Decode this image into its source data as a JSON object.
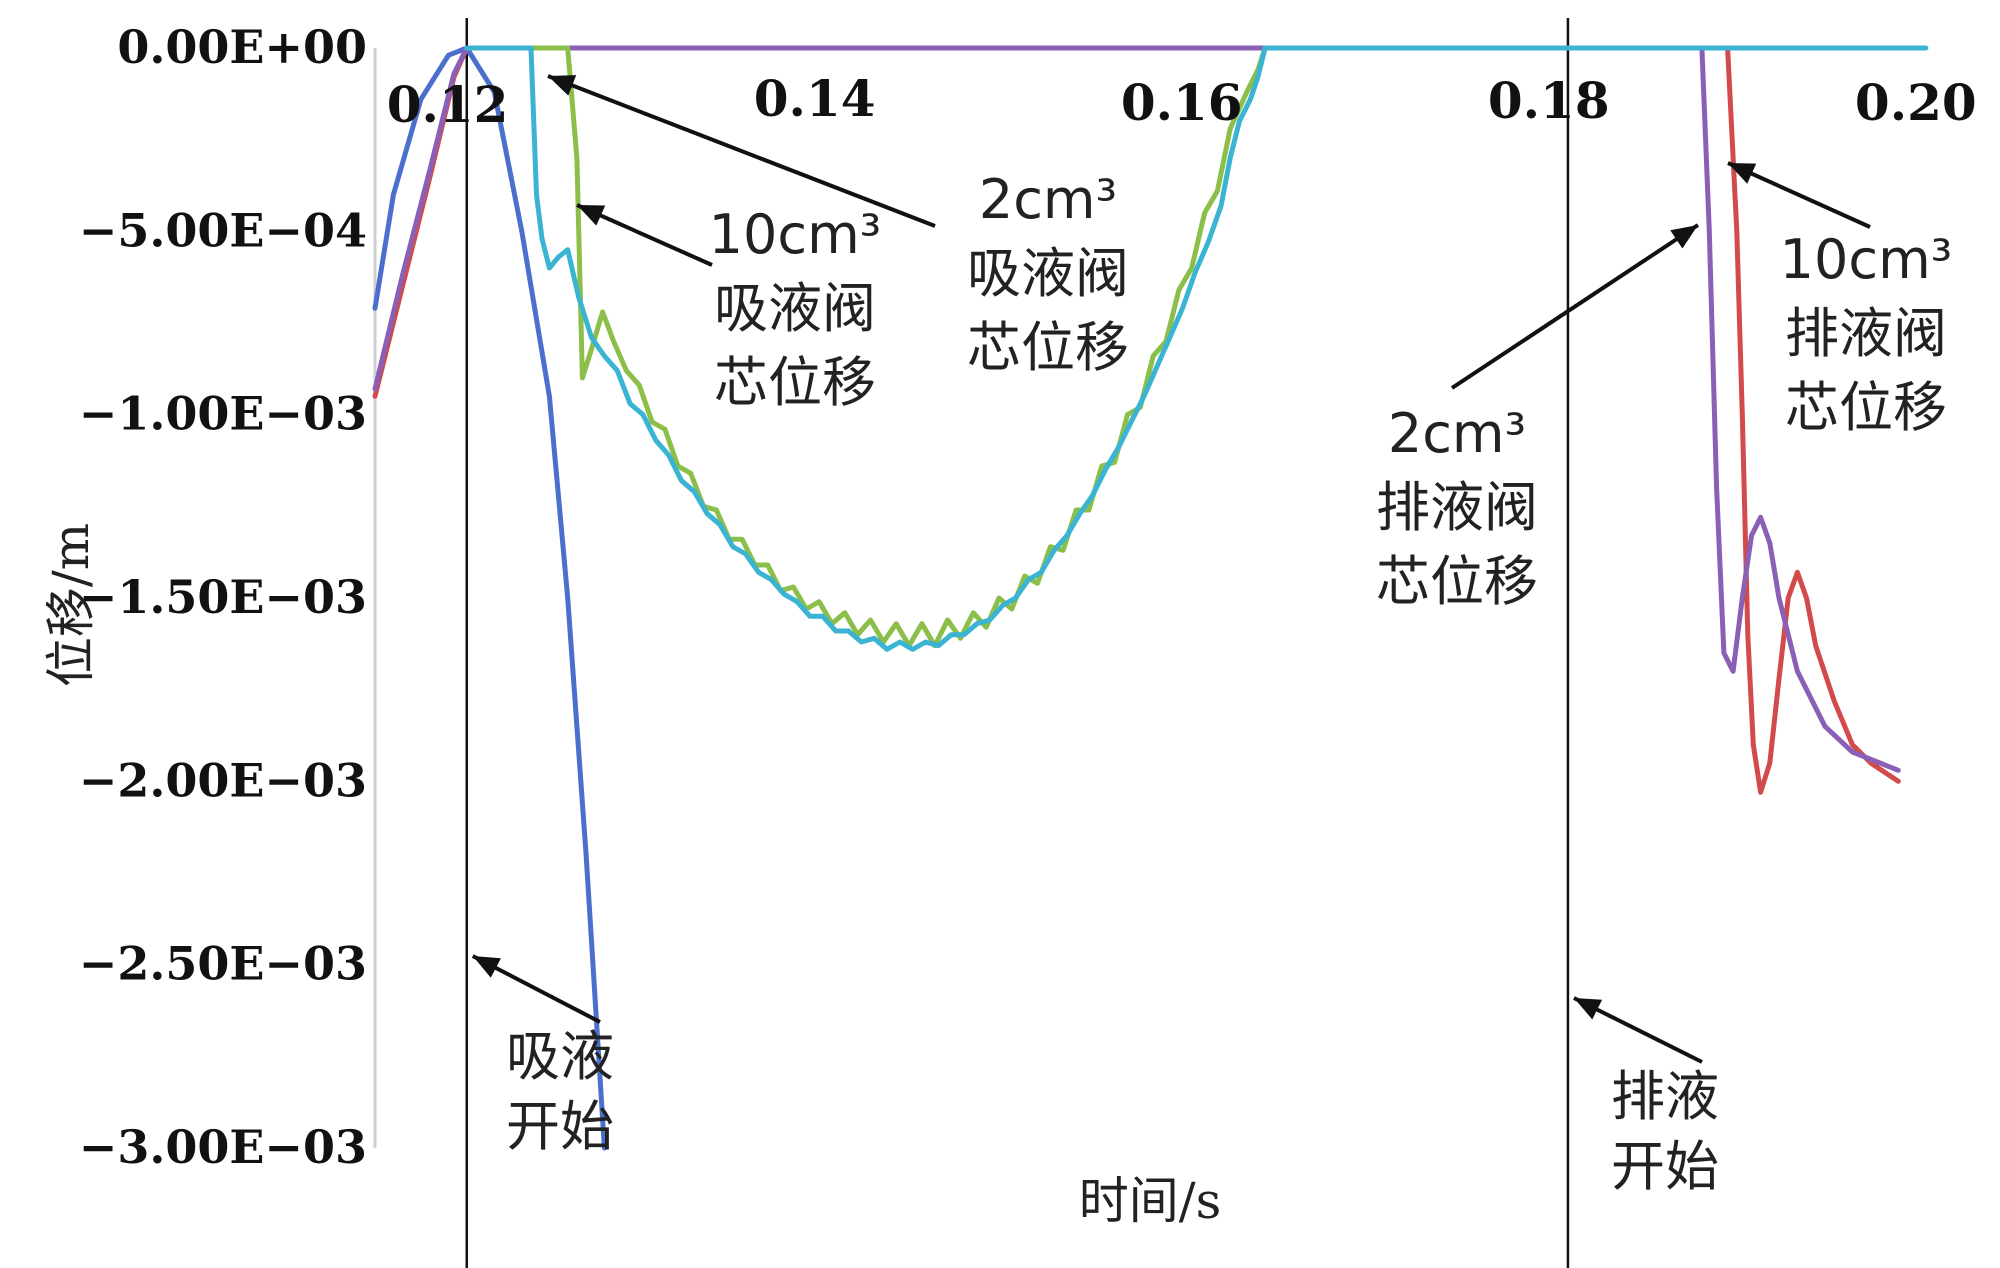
{
  "chart_data": {
    "type": "line",
    "xlabel": "时间/s",
    "ylabel": "位移/m",
    "xlim": [
      0.1155,
      0.2005
    ],
    "ylim": [
      -0.003,
      0
    ],
    "x_ticks": [
      "0.12",
      "0.14",
      "0.16",
      "0.18",
      "0.20"
    ],
    "y_ticks": [
      "0.00E+00",
      "−5.00E−04",
      "−1.00E−03",
      "−1.50E−03",
      "−2.00E−03",
      "−2.50E−03",
      "−3.00E−03"
    ],
    "grid": false,
    "legend": "none",
    "colors": {
      "blue": "#4a6fcc",
      "red": "#d24a4a",
      "green": "#8cbf4a",
      "cyan": "#3ab4d2",
      "purple": "#8a5fb6"
    },
    "events": [
      {
        "x": 0.1205,
        "label_lines": [
          "吸液",
          "开始"
        ]
      },
      {
        "x": 0.1805,
        "label_lines": [
          "排液",
          "开始"
        ]
      }
    ],
    "annotations": [
      {
        "target": "cyan",
        "lines": [
          "2cm³",
          "吸液阀",
          "芯位移"
        ]
      },
      {
        "target": "green",
        "lines": [
          "10cm³",
          "吸液阀",
          "芯位移"
        ]
      },
      {
        "target": "purple",
        "lines": [
          "2cm³",
          "排液阀",
          "芯位移"
        ]
      },
      {
        "target": "red",
        "lines": [
          "10cm³",
          "排液阀",
          "芯位移"
        ]
      }
    ],
    "series": [
      {
        "color_key": "blue",
        "points": [
          [
            0.1155,
            -0.00071
          ],
          [
            0.1165,
            -0.0004
          ],
          [
            0.118,
            -0.00014
          ],
          [
            0.1195,
            -2e-05
          ],
          [
            0.1205,
            0.0
          ],
          [
            0.122,
            -0.00012
          ],
          [
            0.1235,
            -0.0005
          ],
          [
            0.125,
            -0.00095
          ],
          [
            0.126,
            -0.0015
          ],
          [
            0.127,
            -0.0022
          ],
          [
            0.128,
            -0.003
          ]
        ]
      },
      {
        "color_key": "red",
        "points": [
          [
            0.1155,
            -0.00095
          ],
          [
            0.117,
            -0.00065
          ],
          [
            0.1185,
            -0.00035
          ],
          [
            0.1198,
            -8e-05
          ],
          [
            0.1205,
            0.0
          ],
          [
            0.13,
            0.0
          ],
          [
            0.15,
            0.0
          ],
          [
            0.17,
            0.0
          ],
          [
            0.188,
            0.0
          ],
          [
            0.1892,
            0.0
          ],
          [
            0.1897,
            -0.0005
          ],
          [
            0.19,
            -0.001
          ],
          [
            0.1903,
            -0.0016
          ],
          [
            0.1906,
            -0.0019
          ],
          [
            0.191,
            -0.00203
          ],
          [
            0.1915,
            -0.00195
          ],
          [
            0.192,
            -0.00172
          ],
          [
            0.1925,
            -0.0015
          ],
          [
            0.193,
            -0.00143
          ],
          [
            0.1935,
            -0.0015
          ],
          [
            0.194,
            -0.00163
          ],
          [
            0.195,
            -0.00178
          ],
          [
            0.196,
            -0.0019
          ],
          [
            0.197,
            -0.00195
          ],
          [
            0.1985,
            -0.002
          ]
        ]
      },
      {
        "color_key": "purple",
        "points": [
          [
            0.1155,
            -0.00093
          ],
          [
            0.117,
            -0.00062
          ],
          [
            0.1185,
            -0.00033
          ],
          [
            0.1198,
            -7e-05
          ],
          [
            0.1205,
            0.0
          ],
          [
            0.13,
            0.0
          ],
          [
            0.15,
            0.0
          ],
          [
            0.17,
            0.0
          ],
          [
            0.187,
            0.0
          ],
          [
            0.1878,
            0.0
          ],
          [
            0.1882,
            -0.0005
          ],
          [
            0.1886,
            -0.0012
          ],
          [
            0.189,
            -0.00165
          ],
          [
            0.1895,
            -0.0017
          ],
          [
            0.19,
            -0.0015
          ],
          [
            0.1905,
            -0.00133
          ],
          [
            0.191,
            -0.00128
          ],
          [
            0.1915,
            -0.00135
          ],
          [
            0.192,
            -0.0015
          ],
          [
            0.193,
            -0.0017
          ],
          [
            0.1945,
            -0.00185
          ],
          [
            0.196,
            -0.00192
          ],
          [
            0.1985,
            -0.00197
          ]
        ]
      },
      {
        "color_key": "green",
        "points": [
          [
            0.1205,
            0.0
          ],
          [
            0.126,
            0.0
          ],
          [
            0.1265,
            -0.0003
          ],
          [
            0.1268,
            -0.0009
          ],
          [
            0.1273,
            -0.00082
          ],
          [
            0.1279,
            -0.00072
          ],
          [
            0.1285,
            -0.0008
          ],
          [
            0.1292,
            -0.00088
          ],
          [
            0.1299,
            -0.00092
          ],
          [
            0.1306,
            -0.00102
          ],
          [
            0.1313,
            -0.00104
          ],
          [
            0.132,
            -0.00114
          ],
          [
            0.1327,
            -0.00116
          ],
          [
            0.1334,
            -0.00125
          ],
          [
            0.1341,
            -0.00126
          ],
          [
            0.1348,
            -0.00134
          ],
          [
            0.1355,
            -0.00134
          ],
          [
            0.1362,
            -0.00141
          ],
          [
            0.1369,
            -0.00141
          ],
          [
            0.1376,
            -0.00148
          ],
          [
            0.1383,
            -0.00147
          ],
          [
            0.139,
            -0.00153
          ],
          [
            0.1397,
            -0.00151
          ],
          [
            0.1404,
            -0.00157
          ],
          [
            0.1411,
            -0.00154
          ],
          [
            0.1418,
            -0.0016
          ],
          [
            0.1425,
            -0.00156
          ],
          [
            0.1432,
            -0.00162
          ],
          [
            0.1439,
            -0.00157
          ],
          [
            0.1446,
            -0.00163
          ],
          [
            0.1453,
            -0.00157
          ],
          [
            0.146,
            -0.00163
          ],
          [
            0.1467,
            -0.00156
          ],
          [
            0.1474,
            -0.00161
          ],
          [
            0.1481,
            -0.00154
          ],
          [
            0.1488,
            -0.00158
          ],
          [
            0.1495,
            -0.0015
          ],
          [
            0.1502,
            -0.00153
          ],
          [
            0.1509,
            -0.00144
          ],
          [
            0.1516,
            -0.00146
          ],
          [
            0.1523,
            -0.00136
          ],
          [
            0.153,
            -0.00137
          ],
          [
            0.1537,
            -0.00126
          ],
          [
            0.1544,
            -0.00126
          ],
          [
            0.1551,
            -0.00114
          ],
          [
            0.1558,
            -0.00113
          ],
          [
            0.1565,
            -0.001
          ],
          [
            0.1572,
            -0.00098
          ],
          [
            0.1579,
            -0.00084
          ],
          [
            0.1586,
            -0.0008
          ],
          [
            0.1593,
            -0.00066
          ],
          [
            0.16,
            -0.0006
          ],
          [
            0.1607,
            -0.00045
          ],
          [
            0.1614,
            -0.00039
          ],
          [
            0.1621,
            -0.00022
          ],
          [
            0.163,
            -0.00012
          ],
          [
            0.1636,
            -6e-05
          ],
          [
            0.164,
            0.0
          ],
          [
            0.17,
            0.0
          ],
          [
            0.19,
            0.0
          ],
          [
            0.2,
            0.0
          ]
        ]
      },
      {
        "color_key": "cyan",
        "points": [
          [
            0.1205,
            0.0
          ],
          [
            0.124,
            0.0
          ],
          [
            0.1243,
            -0.0004
          ],
          [
            0.1246,
            -0.00052
          ],
          [
            0.125,
            -0.0006
          ],
          [
            0.1255,
            -0.00057
          ],
          [
            0.126,
            -0.00055
          ],
          [
            0.1266,
            -0.00068
          ],
          [
            0.1273,
            -0.00079
          ],
          [
            0.128,
            -0.00084
          ],
          [
            0.1287,
            -0.00088
          ],
          [
            0.1294,
            -0.00097
          ],
          [
            0.1301,
            -0.001
          ],
          [
            0.1308,
            -0.00107
          ],
          [
            0.1315,
            -0.00111
          ],
          [
            0.1322,
            -0.00118
          ],
          [
            0.1329,
            -0.00121
          ],
          [
            0.1336,
            -0.00127
          ],
          [
            0.1343,
            -0.0013
          ],
          [
            0.135,
            -0.00136
          ],
          [
            0.1357,
            -0.00138
          ],
          [
            0.1364,
            -0.00143
          ],
          [
            0.1371,
            -0.00145
          ],
          [
            0.1378,
            -0.00149
          ],
          [
            0.1385,
            -0.00151
          ],
          [
            0.1392,
            -0.00155
          ],
          [
            0.1399,
            -0.00155
          ],
          [
            0.1406,
            -0.00159
          ],
          [
            0.1413,
            -0.00159
          ],
          [
            0.142,
            -0.00162
          ],
          [
            0.1427,
            -0.00161
          ],
          [
            0.1434,
            -0.00164
          ],
          [
            0.1441,
            -0.00162
          ],
          [
            0.1448,
            -0.00164
          ],
          [
            0.1455,
            -0.00162
          ],
          [
            0.1462,
            -0.00163
          ],
          [
            0.1469,
            -0.0016
          ],
          [
            0.1476,
            -0.0016
          ],
          [
            0.1483,
            -0.00157
          ],
          [
            0.149,
            -0.00156
          ],
          [
            0.1497,
            -0.00152
          ],
          [
            0.1504,
            -0.0015
          ],
          [
            0.1511,
            -0.00145
          ],
          [
            0.1518,
            -0.00143
          ],
          [
            0.1525,
            -0.00137
          ],
          [
            0.1532,
            -0.00133
          ],
          [
            0.1539,
            -0.00127
          ],
          [
            0.1546,
            -0.00122
          ],
          [
            0.1553,
            -0.00115
          ],
          [
            0.156,
            -0.00109
          ],
          [
            0.1567,
            -0.00102
          ],
          [
            0.1574,
            -0.00095
          ],
          [
            0.1581,
            -0.00087
          ],
          [
            0.1588,
            -0.00079
          ],
          [
            0.1595,
            -0.00071
          ],
          [
            0.1602,
            -0.00061
          ],
          [
            0.1609,
            -0.00053
          ],
          [
            0.1616,
            -0.00043
          ],
          [
            0.1621,
            -0.0003
          ],
          [
            0.1626,
            -0.0002
          ],
          [
            0.1632,
            -0.00014
          ],
          [
            0.1636,
            -8e-05
          ],
          [
            0.164,
            0.0
          ],
          [
            0.17,
            0.0
          ],
          [
            0.19,
            0.0
          ],
          [
            0.2,
            0.0
          ]
        ]
      }
    ]
  }
}
